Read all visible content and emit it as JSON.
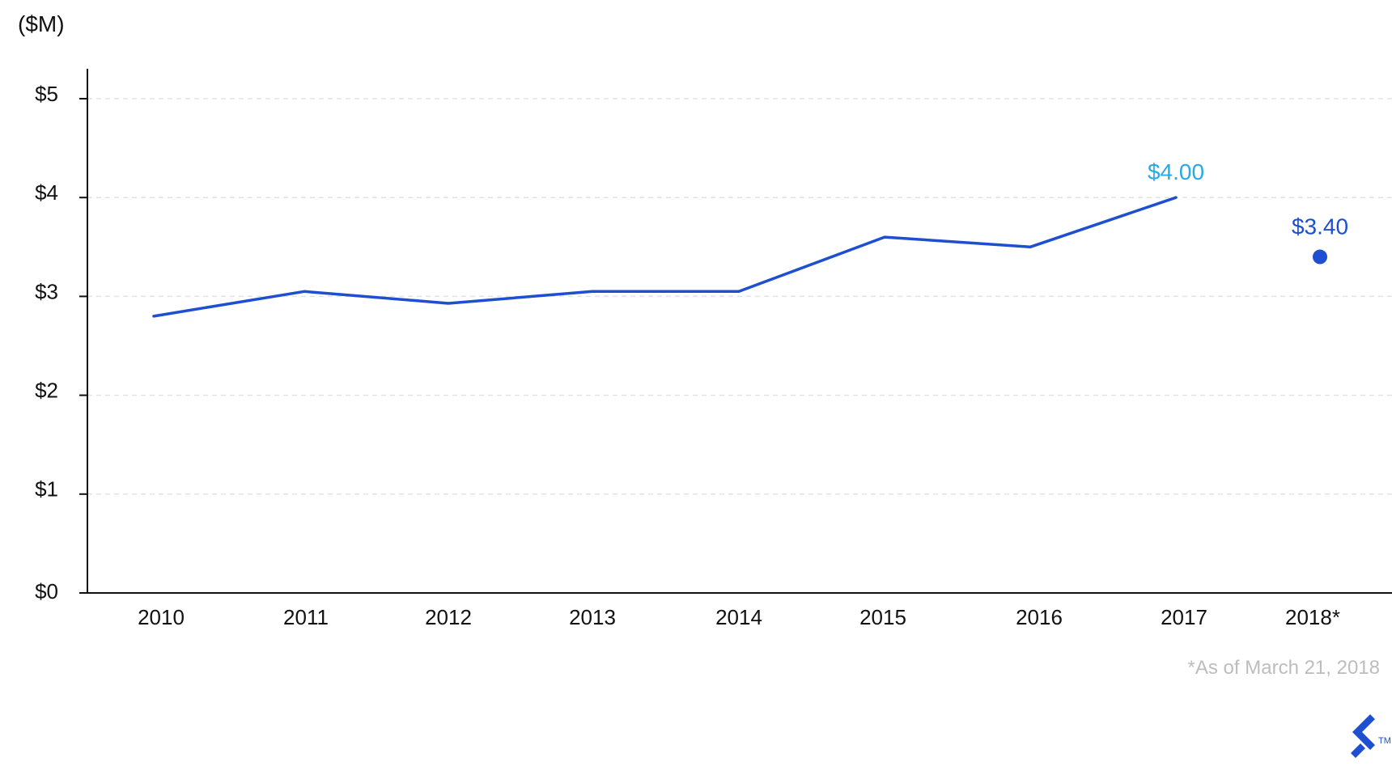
{
  "chart_data": {
    "type": "line",
    "unit_label": "($M)",
    "title": "",
    "xlabel": "",
    "ylabel": "",
    "ylim": [
      0,
      5
    ],
    "y_ticks": [
      {
        "value": 0,
        "label": "$0"
      },
      {
        "value": 1,
        "label": "$1"
      },
      {
        "value": 2,
        "label": "$2"
      },
      {
        "value": 3,
        "label": "$3"
      },
      {
        "value": 4,
        "label": "$4"
      },
      {
        "value": 5,
        "label": "$5"
      }
    ],
    "categories": [
      "2010",
      "2011",
      "2012",
      "2013",
      "2014",
      "2015",
      "2016",
      "2017",
      "2018*"
    ],
    "grid": true,
    "series": [
      {
        "values": [
          2.8,
          3.05,
          2.93,
          3.05,
          3.05,
          3.6,
          3.5,
          4.0,
          null
        ],
        "color": "#1f4fd1"
      }
    ],
    "highlight_point": {
      "category": "2018*",
      "value": 3.4,
      "label": "$3.40",
      "color": "#1f4fd1"
    },
    "annotations": [
      {
        "category": "2017",
        "value": 4.0,
        "label": "$4.00",
        "color": "#29a8e6"
      }
    ],
    "footnote": "*As of March 21, 2018",
    "footnote_color": "#bdbdbd",
    "logo_icon": "toptal-logo-icon",
    "logo_mark": "TM",
    "logo_color": "#1f4fd1"
  }
}
